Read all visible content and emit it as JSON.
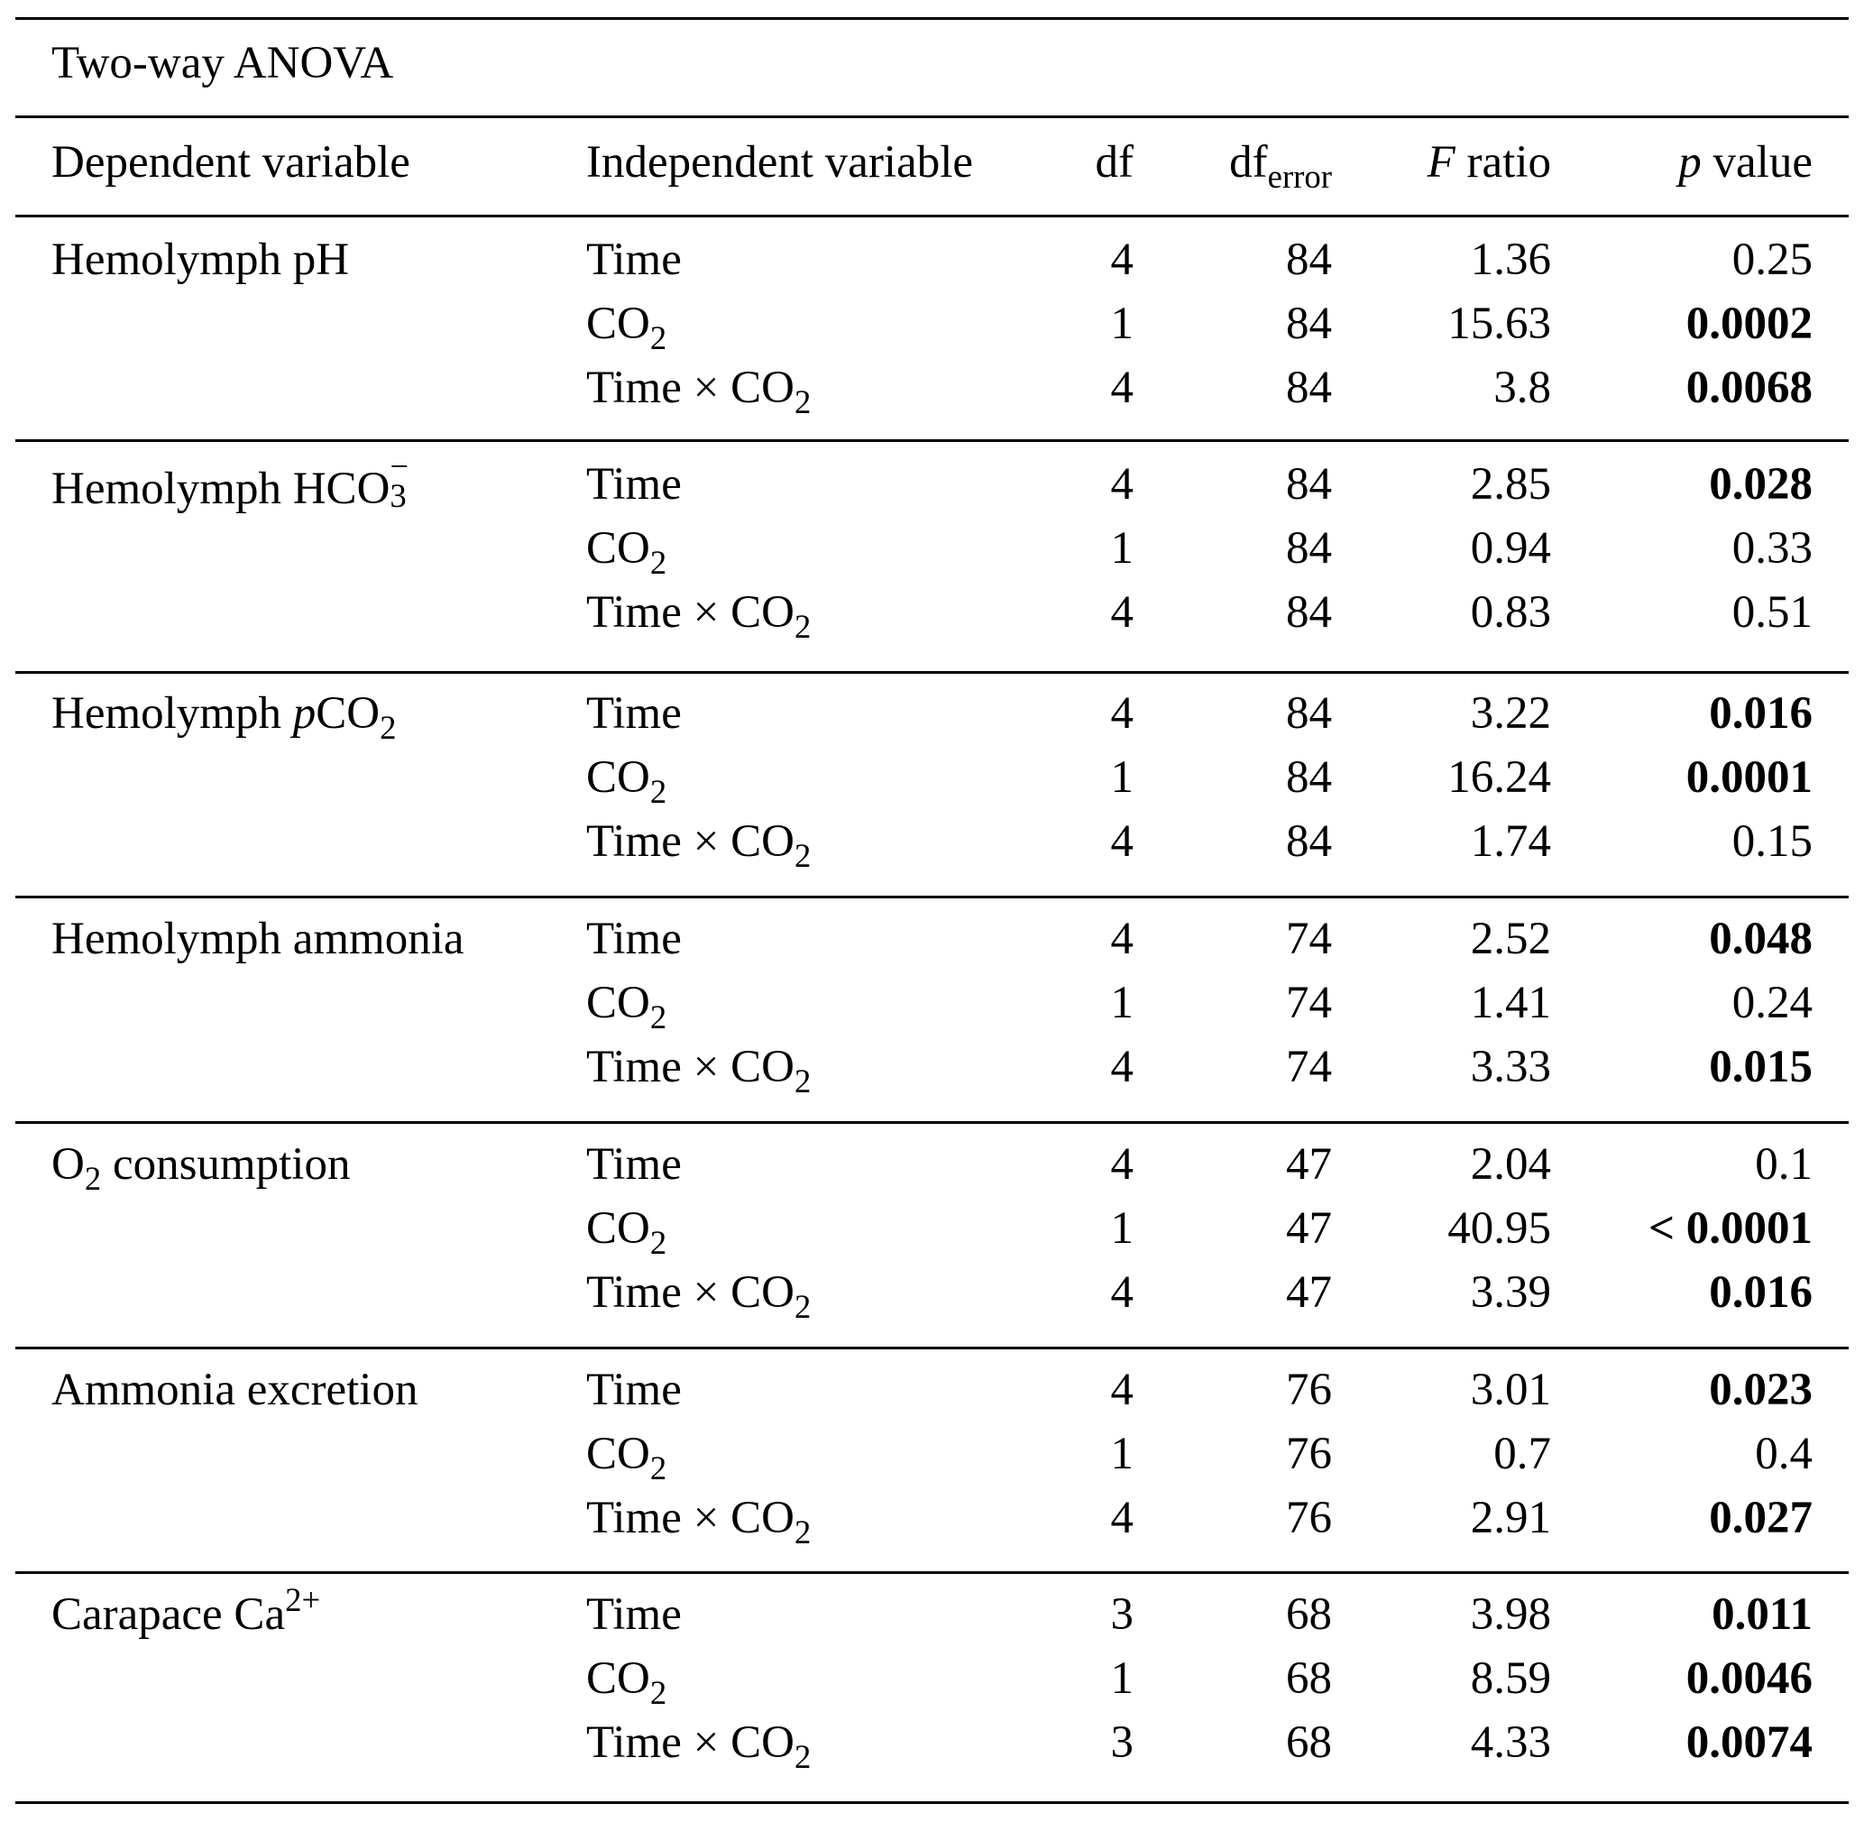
{
  "table": {
    "title": "Two-way ANOVA",
    "columns": {
      "dependent": "Dependent variable",
      "independent": "Independent variable",
      "df": "df",
      "df_error_main": "df",
      "df_error_sub": "error",
      "f_ratio_italic": "F",
      "f_ratio_rest": " ratio",
      "p_value_italic": "p",
      "p_value_rest": " value"
    },
    "groups": [
      {
        "dependent": {
          "main": "Hemolymph pH",
          "sub": "",
          "sup": "",
          "italic_prefix": "",
          "suffix": ""
        },
        "rows": [
          {
            "iv": "Time",
            "df": "4",
            "df_error": "84",
            "f": "1.36",
            "p": "0.25",
            "significant": false
          },
          {
            "iv": "CO2",
            "df": "1",
            "df_error": "84",
            "f": "15.63",
            "p": "0.0002",
            "significant": true
          },
          {
            "iv": "Time × CO2",
            "df": "4",
            "df_error": "84",
            "f": "3.8",
            "p": "0.0068",
            "significant": true
          }
        ]
      },
      {
        "dependent": {
          "main": "Hemolymph HCO3−"
        },
        "rows": [
          {
            "iv": "Time",
            "df": "4",
            "df_error": "84",
            "f": "2.85",
            "p": "0.028",
            "significant": true
          },
          {
            "iv": "CO2",
            "df": "1",
            "df_error": "84",
            "f": "0.94",
            "p": "0.33",
            "significant": false
          },
          {
            "iv": "Time × CO2",
            "df": "4",
            "df_error": "84",
            "f": "0.83",
            "p": "0.51",
            "significant": false
          }
        ]
      },
      {
        "dependent": {
          "main": "Hemolymph pCO2"
        },
        "rows": [
          {
            "iv": "Time",
            "df": "4",
            "df_error": "84",
            "f": "3.22",
            "p": "0.016",
            "significant": true
          },
          {
            "iv": "CO2",
            "df": "1",
            "df_error": "84",
            "f": "16.24",
            "p": "0.0001",
            "significant": true
          },
          {
            "iv": "Time × CO2",
            "df": "4",
            "df_error": "84",
            "f": "1.74",
            "p": "0.15",
            "significant": false
          }
        ]
      },
      {
        "dependent": {
          "main": "Hemolymph ammonia"
        },
        "rows": [
          {
            "iv": "Time",
            "df": "4",
            "df_error": "74",
            "f": "2.52",
            "p": "0.048",
            "significant": true
          },
          {
            "iv": "CO2",
            "df": "1",
            "df_error": "74",
            "f": "1.41",
            "p": "0.24",
            "significant": false
          },
          {
            "iv": "Time × CO2",
            "df": "4",
            "df_error": "74",
            "f": "3.33",
            "p": "0.015",
            "significant": true
          }
        ]
      },
      {
        "dependent": {
          "main": "O2 consumption"
        },
        "rows": [
          {
            "iv": "Time",
            "df": "4",
            "df_error": "47",
            "f": "2.04",
            "p": "0.1",
            "significant": false
          },
          {
            "iv": "CO2",
            "df": "1",
            "df_error": "47",
            "f": "40.95",
            "p": "< 0.0001",
            "significant": true
          },
          {
            "iv": "Time × CO2",
            "df": "4",
            "df_error": "47",
            "f": "3.39",
            "p": "0.016",
            "significant": true
          }
        ]
      },
      {
        "dependent": {
          "main": "Ammonia excretion"
        },
        "rows": [
          {
            "iv": "Time",
            "df": "4",
            "df_error": "76",
            "f": "3.01",
            "p": "0.023",
            "significant": true
          },
          {
            "iv": "CO2",
            "df": "1",
            "df_error": "76",
            "f": "0.7",
            "p": "0.4",
            "significant": false
          },
          {
            "iv": "Time × CO2",
            "df": "4",
            "df_error": "76",
            "f": "2.91",
            "p": "0.027",
            "significant": true
          }
        ]
      },
      {
        "dependent": {
          "main": "Carapace Ca2+"
        },
        "rows": [
          {
            "iv": "Time",
            "df": "3",
            "df_error": "68",
            "f": "3.98",
            "p": "0.011",
            "significant": true
          },
          {
            "iv": "CO2",
            "df": "1",
            "df_error": "68",
            "f": "8.59",
            "p": "0.0046",
            "significant": true
          },
          {
            "iv": "Time × CO2",
            "df": "3",
            "df_error": "68",
            "f": "4.33",
            "p": "0.0074",
            "significant": true
          }
        ]
      }
    ]
  },
  "labels": {
    "time": "Time",
    "co2_main": "CO",
    "co2_sub": "2",
    "times": "Time × CO",
    "dep": [
      {
        "pre": "Hemolymph pH"
      },
      {
        "pre": "Hemolymph HCO",
        "sub": "3",
        "sup": "−"
      },
      {
        "pre": "Hemolymph ",
        "ital": "p",
        "post": "CO",
        "sub": "2"
      },
      {
        "pre": "Hemolymph ammonia"
      },
      {
        "pre": "O",
        "sub": "2",
        "post": " consumption"
      },
      {
        "pre": "Ammonia excretion"
      },
      {
        "pre": "Carapace Ca",
        "sup": "2+"
      }
    ]
  }
}
